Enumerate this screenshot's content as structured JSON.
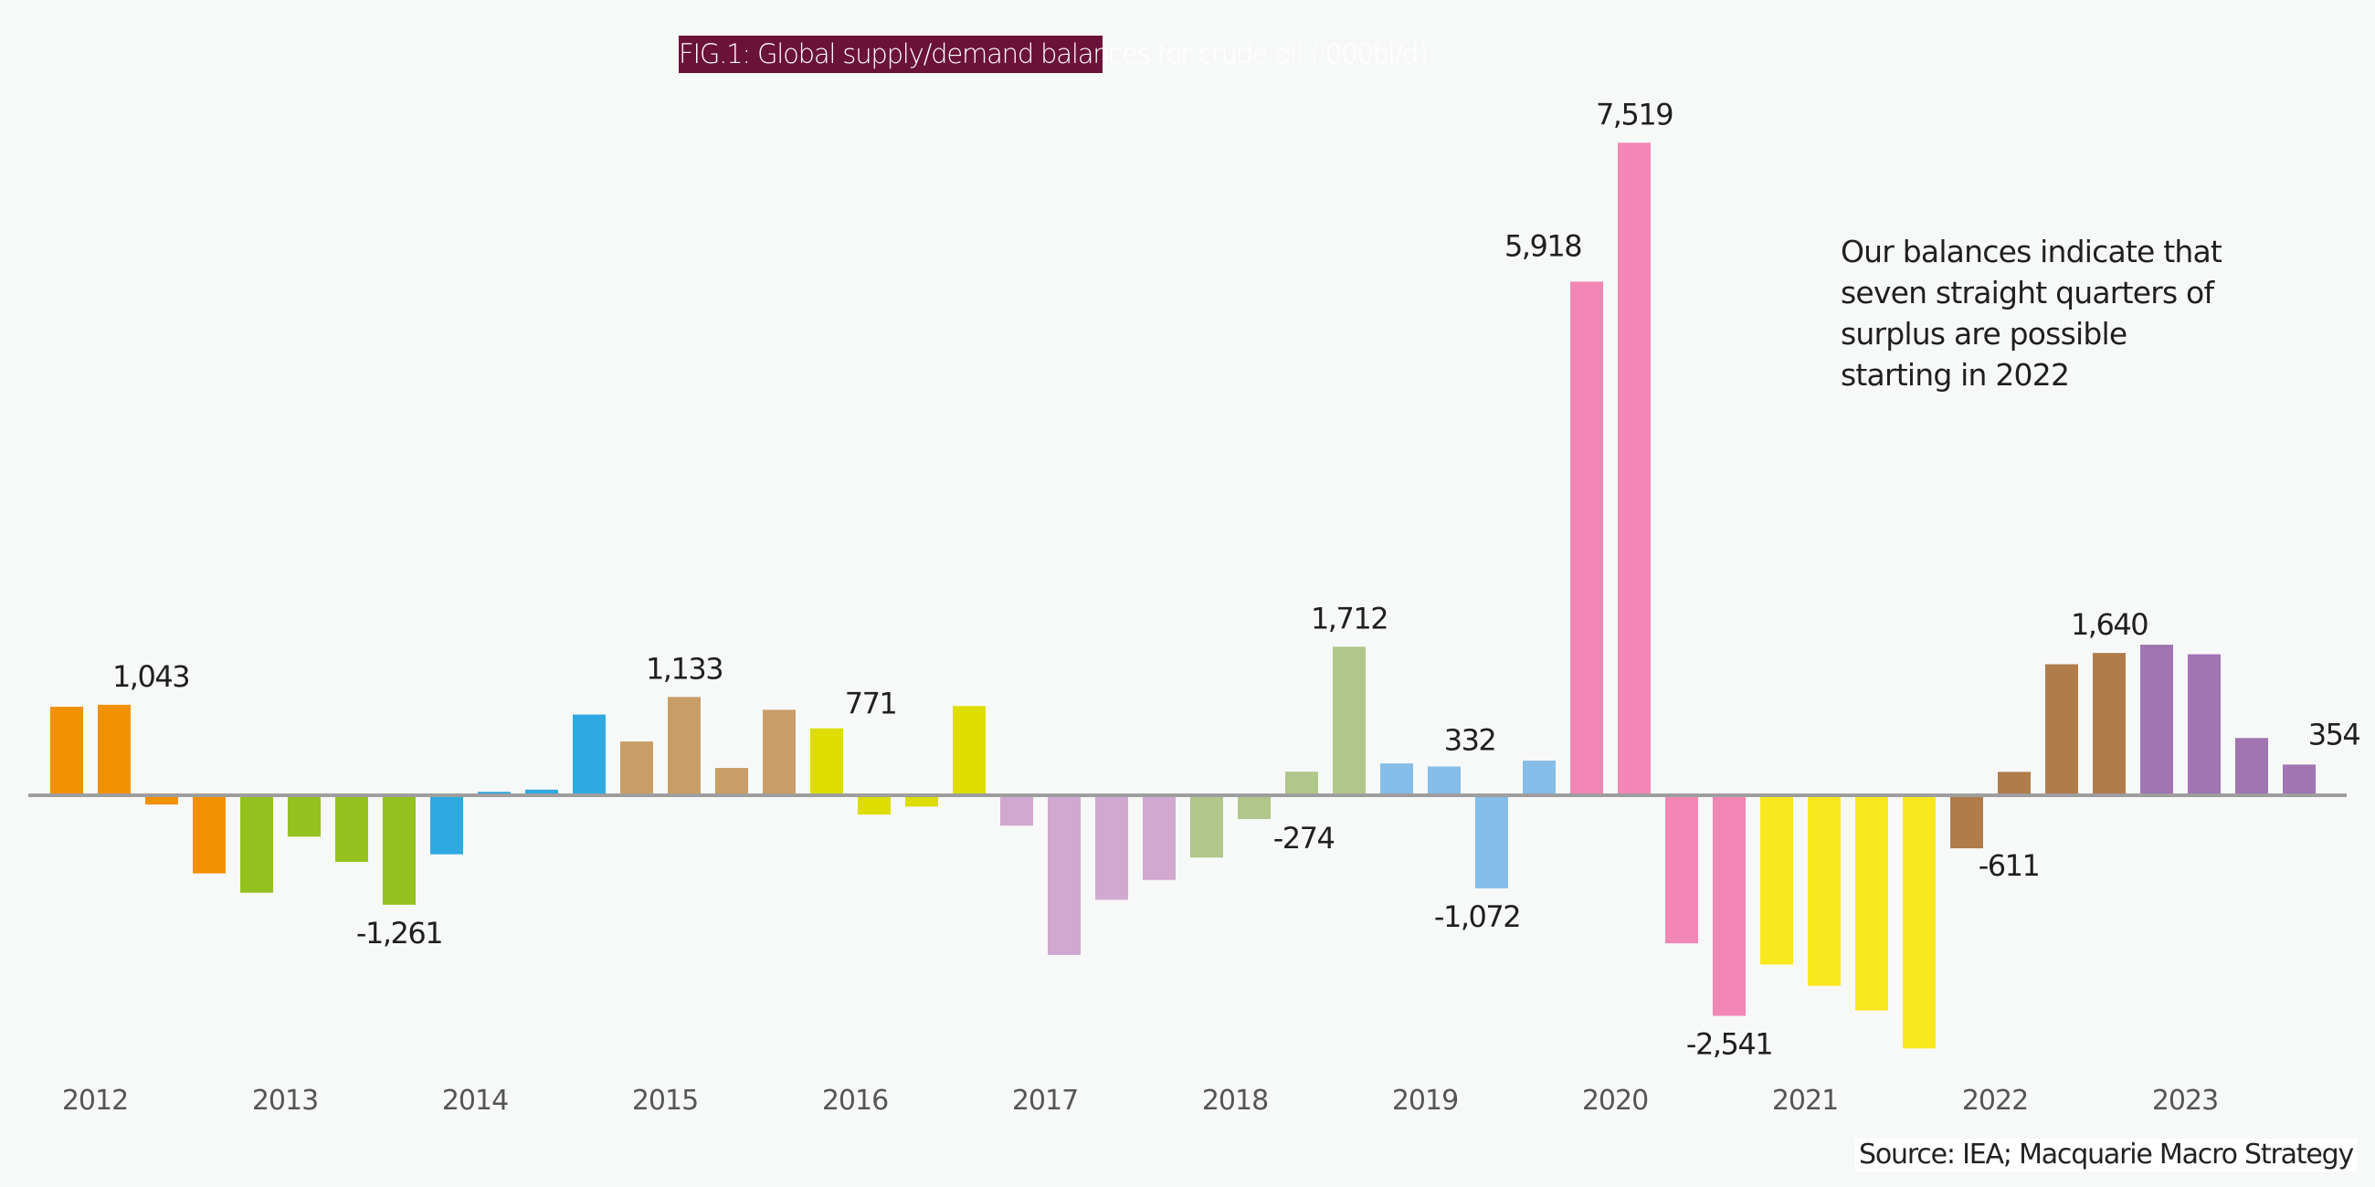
{
  "chart_data": {
    "type": "bar",
    "title": "FIG.1: Global supply/demand balances for crude oil ('000bl/d)",
    "xlabel": "",
    "ylabel": "",
    "ylim": [
      -3000,
      7700
    ],
    "grid": false,
    "legend": "none",
    "years": [
      "2012",
      "2013",
      "2014",
      "2015",
      "2016",
      "2017",
      "2018",
      "2019",
      "2020",
      "2021",
      "2022",
      "2023"
    ],
    "year_colors": [
      "#f29100",
      "#95c11f",
      "#2ea9e1",
      "#c99d67",
      "#dddd00",
      "#d1a8d0",
      "#b1c68b",
      "#85bde8",
      "#f287b6",
      "#f9e81e",
      "#b07d4a",
      "#a075b2"
    ],
    "quarters_per_year": 4,
    "values": [
      1020,
      1043,
      -106,
      -900,
      -1123,
      -477,
      -767,
      -1261,
      -680,
      40,
      65,
      930,
      620,
      1133,
      315,
      985,
      771,
      -222,
      -130,
      1028,
      -350,
      -1840,
      -1204,
      -975,
      -717,
      -274,
      272,
      1712,
      367,
      332,
      -1072,
      400,
      5918,
      7519,
      -1705,
      -2541,
      -1950,
      -2195,
      -2478,
      -2917,
      -611,
      270,
      1510,
      1640,
      1735,
      1625,
      660,
      354
    ],
    "data_labels": [
      {
        "bar": 1,
        "text": "1,043"
      },
      {
        "bar": 7,
        "text": "-1,261"
      },
      {
        "bar": 13,
        "text": "1,133"
      },
      {
        "bar": 16,
        "text": "771"
      },
      {
        "bar": 25,
        "text": "-274"
      },
      {
        "bar": 27,
        "text": "1,712"
      },
      {
        "bar": 29,
        "text": "332"
      },
      {
        "bar": 30,
        "text": "-1,072"
      },
      {
        "bar": 32,
        "text": "5,918"
      },
      {
        "bar": 33,
        "text": "7,519"
      },
      {
        "bar": 35,
        "text": "-2,541"
      },
      {
        "bar": 40,
        "text": "-611"
      },
      {
        "bar": 43,
        "text": "1,640"
      },
      {
        "bar": 47,
        "text": "354"
      }
    ],
    "annotation": "Our balances indicate that seven straight quarters of surplus are possible starting in 2022",
    "source": "Source: IEA; Macquarie Macro Strategy"
  },
  "axis_color": "#9e9e9e",
  "title_bg": "#6b1238"
}
